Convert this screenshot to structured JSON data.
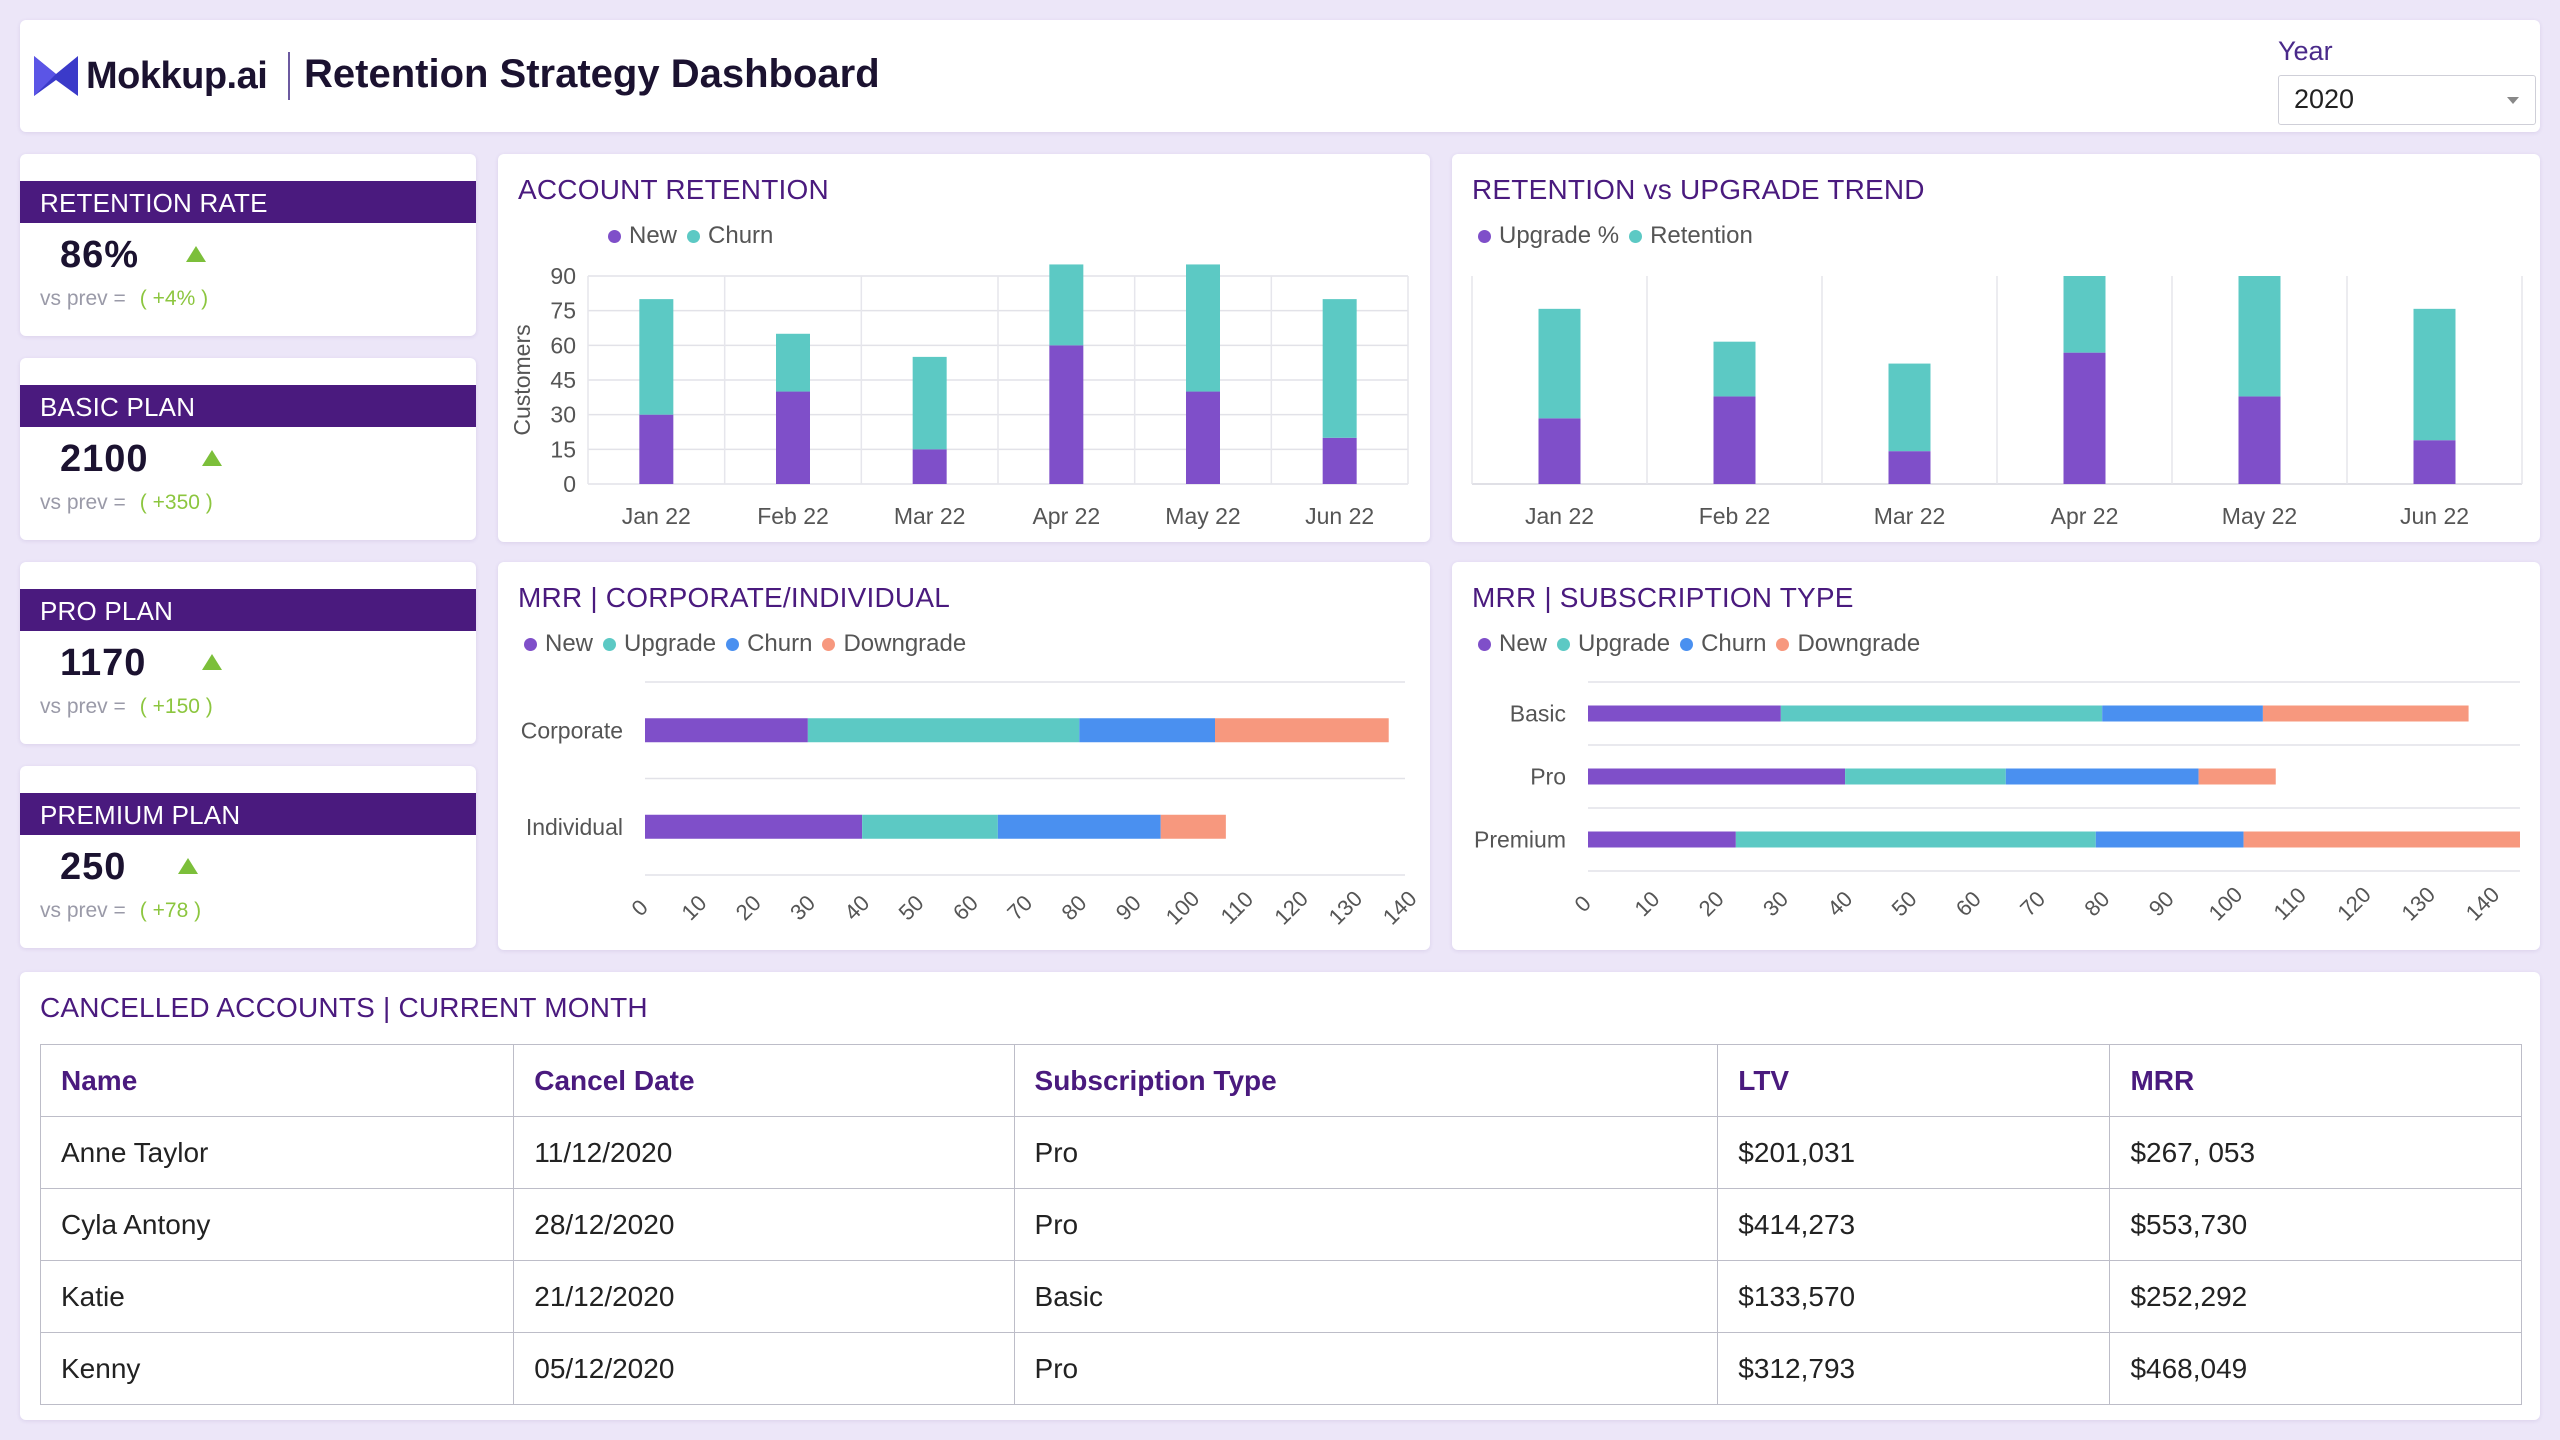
{
  "header": {
    "brand": "Mokkup.ai",
    "title": "Retention Strategy Dashboard",
    "year_label": "Year",
    "year_value": "2020"
  },
  "kpis": [
    {
      "title": "RETENTION RATE",
      "value": "86%",
      "vs_label": "vs prev =",
      "delta": "( +4% )"
    },
    {
      "title": "BASIC PLAN",
      "value": "2100",
      "vs_label": "vs prev =",
      "delta": "( +350 )"
    },
    {
      "title": "PRO PLAN",
      "value": "1170",
      "vs_label": "vs prev =",
      "delta": "( +150 )"
    },
    {
      "title": "PREMIUM PLAN",
      "value": "250",
      "vs_label": "vs prev =",
      "delta": "( +78 )"
    }
  ],
  "colors": {
    "purple": "#7f4fc9",
    "teal": "#5cc9c4",
    "blue": "#4a90f0",
    "salmon": "#f7987e",
    "title": "#4a1a7e"
  },
  "account_retention": {
    "title": "ACCOUNT RETENTION",
    "legend": [
      "New",
      "Churn"
    ]
  },
  "retention_upgrade": {
    "title": "RETENTION vs UPGRADE TREND",
    "legend": [
      "Upgrade %",
      "Retention"
    ]
  },
  "mrr_corp": {
    "title": "MRR | CORPORATE/INDIVIDUAL",
    "legend": [
      "New",
      "Upgrade",
      "Churn",
      "Downgrade"
    ]
  },
  "mrr_sub": {
    "title": "MRR | SUBSCRIPTION TYPE",
    "legend": [
      "New",
      "Upgrade",
      "Churn",
      "Downgrade"
    ]
  },
  "chart_data": [
    {
      "type": "bar",
      "stacked": true,
      "title": "ACCOUNT RETENTION",
      "ylabel": "Customers",
      "xlabel": "",
      "categories": [
        "Jan 22",
        "Feb 22",
        "Mar 22",
        "Apr 22",
        "May 22",
        "Jun 22"
      ],
      "series": [
        {
          "name": "New",
          "values": [
            30,
            40,
            15,
            60,
            40,
            20
          ]
        },
        {
          "name": "Churn",
          "values": [
            50,
            25,
            40,
            35,
            55,
            60
          ]
        }
      ],
      "yticks": [
        0,
        15,
        30,
        45,
        60,
        75,
        90
      ],
      "ylim": [
        0,
        90
      ],
      "grid": true
    },
    {
      "type": "bar",
      "stacked": true,
      "title": "RETENTION vs UPGRADE TREND",
      "categories": [
        "Jan 22",
        "Feb 22",
        "Mar 22",
        "Apr 22",
        "May 22",
        "Jun 22"
      ],
      "series": [
        {
          "name": "Upgrade %",
          "values": [
            30,
            40,
            15,
            60,
            40,
            20
          ]
        },
        {
          "name": "Retention",
          "values": [
            50,
            25,
            40,
            35,
            55,
            60
          ]
        }
      ],
      "ylim": [
        0,
        95
      ],
      "grid": true
    },
    {
      "type": "bar",
      "orientation": "horizontal",
      "stacked": true,
      "title": "MRR | CORPORATE/INDIVIDUAL",
      "categories": [
        "Corporate",
        "Individual"
      ],
      "series": [
        {
          "name": "New",
          "values": [
            30,
            40
          ]
        },
        {
          "name": "Upgrade",
          "values": [
            50,
            25
          ]
        },
        {
          "name": "Churn",
          "values": [
            25,
            30
          ]
        },
        {
          "name": "Downgrade",
          "values": [
            32,
            12
          ]
        }
      ],
      "xticks": [
        0,
        10,
        20,
        30,
        40,
        50,
        60,
        70,
        80,
        90,
        100,
        110,
        120,
        130,
        140
      ],
      "xlim": [
        0,
        140
      ],
      "grid": true
    },
    {
      "type": "bar",
      "orientation": "horizontal",
      "stacked": true,
      "title": "MRR | SUBSCRIPTION TYPE",
      "categories": [
        "Basic",
        "Pro",
        "Premium"
      ],
      "series": [
        {
          "name": "New",
          "values": [
            30,
            40,
            23
          ]
        },
        {
          "name": "Upgrade",
          "values": [
            50,
            25,
            56
          ]
        },
        {
          "name": "Churn",
          "values": [
            25,
            30,
            23
          ]
        },
        {
          "name": "Downgrade",
          "values": [
            32,
            12,
            43
          ]
        }
      ],
      "xticks": [
        0,
        10,
        20,
        30,
        40,
        50,
        60,
        70,
        80,
        90,
        100,
        110,
        120,
        130,
        140
      ],
      "xlim": [
        0,
        145
      ],
      "grid": true
    }
  ],
  "cancelled": {
    "title": "CANCELLED ACCOUNTS | CURRENT MONTH",
    "columns": [
      "Name",
      "Cancel Date",
      "Subscription Type",
      "LTV",
      "MRR"
    ],
    "rows": [
      [
        "Anne Taylor",
        "11/12/2020",
        "Pro",
        "$201,031",
        "$267, 053"
      ],
      [
        "Cyla Antony",
        "28/12/2020",
        "Pro",
        "$414,273",
        "$553,730"
      ],
      [
        "Katie",
        "21/12/2020",
        "Basic",
        "$133,570",
        "$252,292"
      ],
      [
        "Kenny",
        "05/12/2020",
        "Pro",
        "$312,793",
        "$468,049"
      ]
    ]
  }
}
